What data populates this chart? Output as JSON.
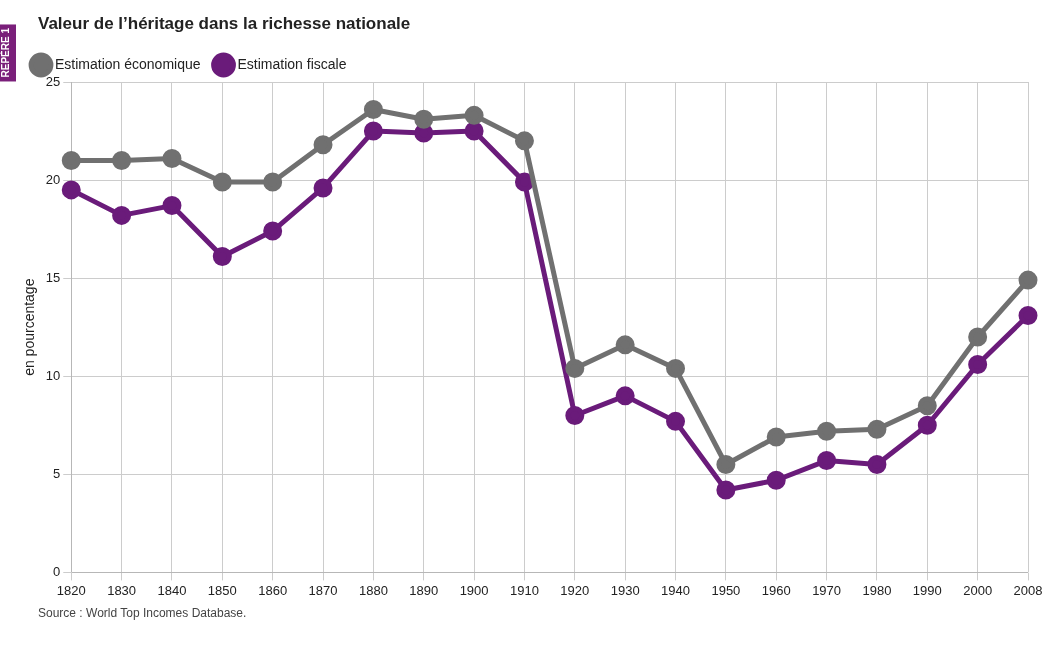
{
  "chart_data": {
    "type": "line",
    "title": "Valeur de l’héritage dans la richesse nationale",
    "ylabel": "en pourcentage",
    "categories": [
      "1820",
      "1830",
      "1840",
      "1850",
      "1860",
      "1870",
      "1880",
      "1890",
      "1900",
      "1910",
      "1920",
      "1930",
      "1940",
      "1950",
      "1960",
      "1970",
      "1980",
      "1990",
      "2000",
      "2008"
    ],
    "series": [
      {
        "name": "Estimation économique",
        "color": "#707070",
        "values": [
          21.0,
          21.0,
          21.1,
          19.9,
          19.9,
          21.8,
          23.6,
          23.1,
          23.3,
          22.0,
          10.4,
          11.6,
          10.4,
          5.5,
          6.9,
          7.2,
          7.3,
          8.5,
          12.0,
          14.9
        ]
      },
      {
        "name": "Estimation fiscale",
        "color": "#6a1b7a",
        "values": [
          19.5,
          18.2,
          18.7,
          16.1,
          17.4,
          19.6,
          22.5,
          22.4,
          22.5,
          19.9,
          8.0,
          9.0,
          7.7,
          4.2,
          4.7,
          5.7,
          5.5,
          7.5,
          10.6,
          13.1
        ]
      }
    ],
    "ylim": [
      0,
      25
    ],
    "yticks": [
      0,
      5,
      10,
      15,
      20,
      25
    ],
    "grid": true,
    "legend": "top left",
    "marker": "circle",
    "line_style": "solid",
    "annotations": [
      "REPÈRE 1",
      "Source : World Top Incomes Database."
    ]
  }
}
